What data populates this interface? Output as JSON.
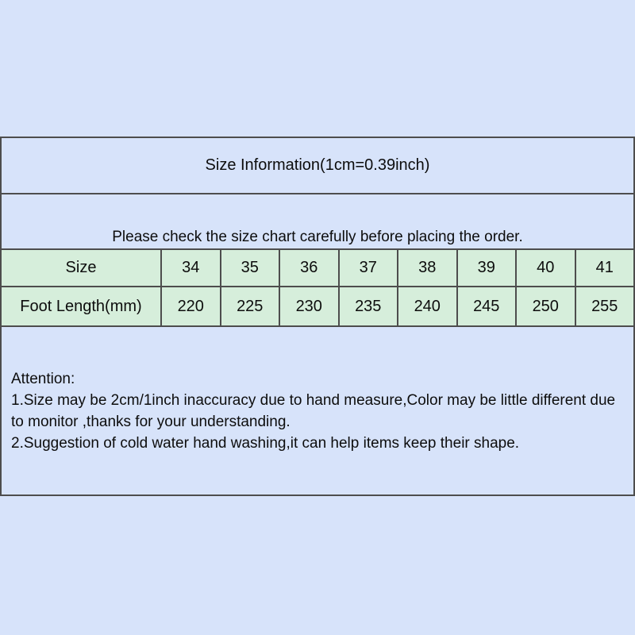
{
  "page": {
    "background_color": "#d7e3fa",
    "table_row_green": "#d6eedb",
    "border_color": "#4d4d4d",
    "text_color": "#0d0d0d"
  },
  "size_chart": {
    "title": "Size Information(1cm=0.39inch)",
    "note": "Please check the size chart carefully before placing the order.",
    "size_row": {
      "label": "Size",
      "values": [
        "34",
        "35",
        "36",
        "37",
        "38",
        "39",
        "40",
        "41"
      ]
    },
    "length_row": {
      "label": "Foot Length(mm)",
      "values": [
        "220",
        "225",
        "230",
        "235",
        "240",
        "245",
        "250",
        "255"
      ]
    }
  },
  "attention": {
    "heading": "Attention:",
    "items": [
      "1.Size may be 2cm/1inch inaccuracy due to hand measure,Color may be little different due to monitor ,thanks for your understanding.",
      "2.Suggestion of cold water hand washing,it can help items keep their shape."
    ]
  }
}
